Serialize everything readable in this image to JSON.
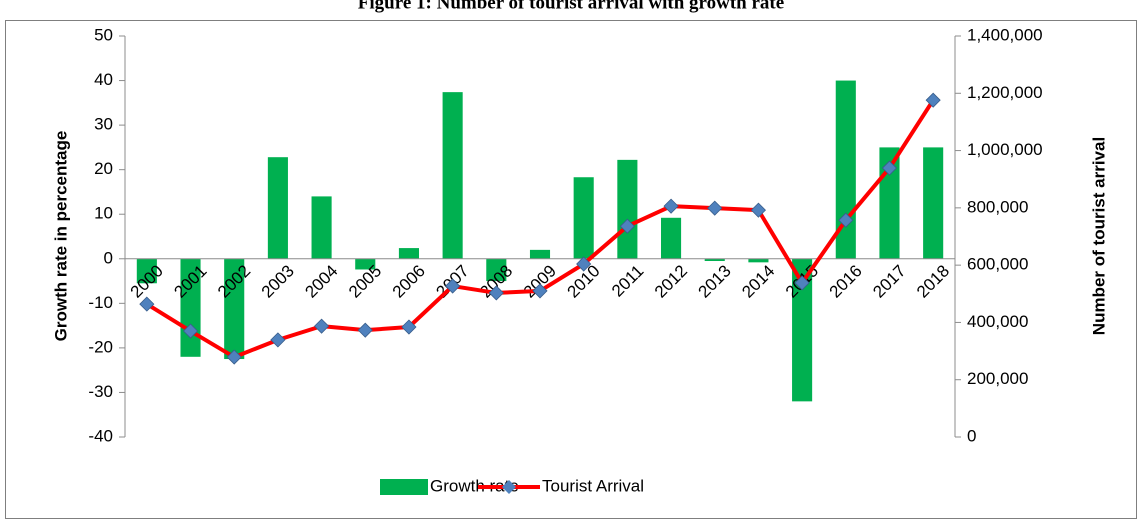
{
  "chart_data": {
    "type": "bar-line",
    "title": "Figure 1: Number of tourist arrival with growth rate",
    "y_label": "Growth rate in percentage",
    "y2_label": "Number of tourist arrival",
    "categories": [
      "2000",
      "2001",
      "2002",
      "2003",
      "2004",
      "2005",
      "2006",
      "2007",
      "2008",
      "2009",
      "2010",
      "2011",
      "2012",
      "2013",
      "2014",
      "2015",
      "2016",
      "2017",
      "2018"
    ],
    "series": [
      {
        "name": "Growth rate",
        "type": "bar",
        "color": "#00b050",
        "values": [
          -5.5,
          -22,
          -22.5,
          22.8,
          14,
          -2.4,
          2.4,
          37.4,
          -5,
          2,
          18.3,
          22.2,
          9.2,
          -0.5,
          -0.8,
          -32,
          40,
          25,
          25
        ]
      },
      {
        "name": "Tourist Arrival",
        "type": "line",
        "axis": "y2",
        "color": "#ff0000",
        "marker_color": "#4f81bd",
        "values": [
          464000,
          370000,
          279000,
          339000,
          387000,
          373000,
          384000,
          527000,
          503000,
          510000,
          604000,
          736000,
          806000,
          799000,
          792000,
          538000,
          757000,
          939000,
          1176000
        ]
      }
    ],
    "ylim": [
      -40,
      50
    ],
    "yticks": [
      -40,
      -30,
      -20,
      -10,
      0,
      10,
      20,
      30,
      40,
      50
    ],
    "y2lim": [
      0,
      1400000
    ],
    "y2ticks": [
      0,
      {
        "value": 200000,
        "label": "200,000"
      },
      {
        "value": 400000,
        "label": "400,000"
      },
      {
        "value": 600000,
        "label": "600,000"
      },
      {
        "value": 800000,
        "label": "800,000"
      },
      {
        "value": 1000000,
        "label": "1,000,000"
      },
      {
        "value": 1200000,
        "label": "1,200,000"
      },
      {
        "value": 1400000,
        "label": "1,400,000"
      }
    ],
    "grid": false,
    "legend": "bottom"
  }
}
